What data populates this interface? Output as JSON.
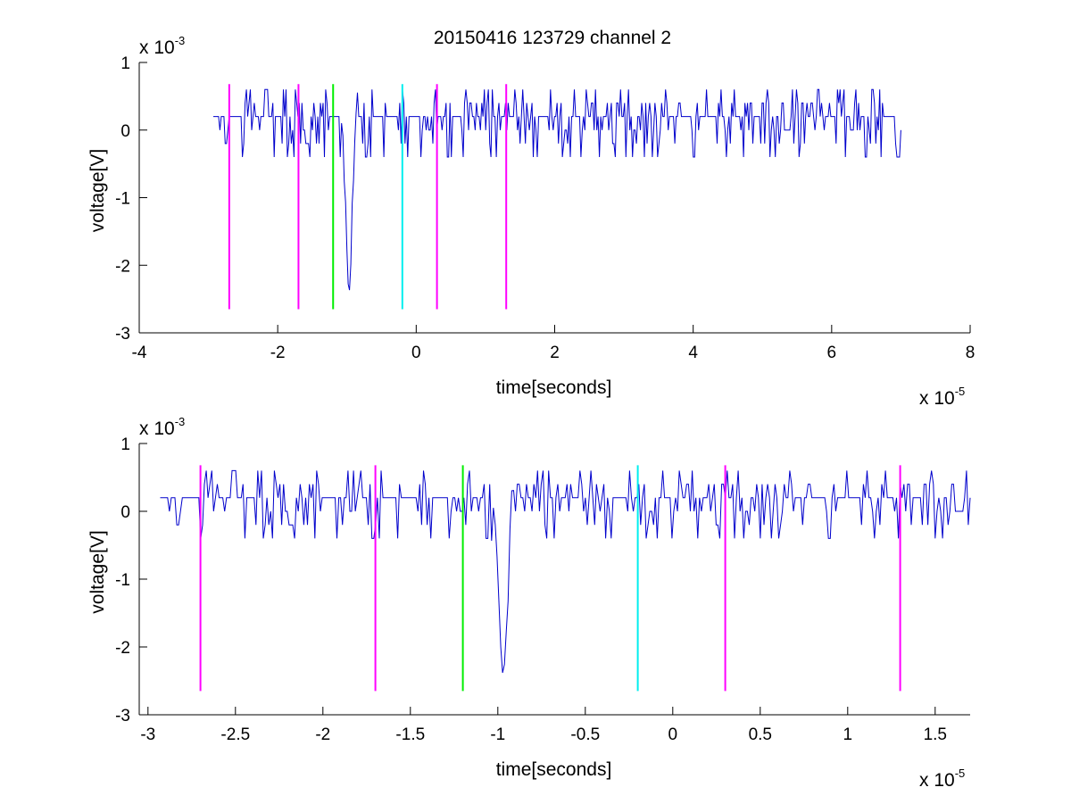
{
  "figure": {
    "title": "20150416 123729 channel 2"
  },
  "chart_data": [
    {
      "type": "line",
      "xlabel": "time[seconds]",
      "ylabel": "voltage[V]",
      "x_multiplier": "x 10",
      "x_exponent": "-5",
      "y_multiplier": "x 10",
      "y_exponent": "-3",
      "xlim": [
        -4,
        8
      ],
      "ylim": [
        -3,
        1
      ],
      "xticks": [
        -4,
        -2,
        0,
        2,
        4,
        6,
        8
      ],
      "xtick_labels": [
        "-4",
        "-2",
        "0",
        "2",
        "4",
        "6",
        "8"
      ],
      "yticks": [
        1,
        0,
        -1,
        -2,
        -3
      ],
      "ytick_labels": [
        "1",
        "0",
        "-1",
        "-2",
        "-3"
      ],
      "grid": false,
      "series": [
        {
          "color": "#0000cc",
          "x_range": [
            -2.93,
            7.0
          ],
          "baseline": 0.05,
          "spike": {
            "x": -0.97,
            "min": -2.4
          }
        }
      ],
      "markers": [
        {
          "x": -2.7,
          "color": "#ff00ff",
          "y_range": [
            -2.65,
            0.68
          ]
        },
        {
          "x": -1.7,
          "color": "#ff00ff",
          "y_range": [
            -2.65,
            0.68
          ]
        },
        {
          "x": -1.2,
          "color": "#00ee00",
          "y_range": [
            -2.65,
            0.68
          ]
        },
        {
          "x": -0.2,
          "color": "#00eeee",
          "y_range": [
            -2.65,
            0.68
          ]
        },
        {
          "x": 0.3,
          "color": "#ff00ff",
          "y_range": [
            -2.65,
            0.68
          ]
        },
        {
          "x": 1.3,
          "color": "#ff00ff",
          "y_range": [
            -2.65,
            0.68
          ]
        }
      ]
    },
    {
      "type": "line",
      "xlabel": "time[seconds]",
      "ylabel": "voltage[V]",
      "x_multiplier": "x 10",
      "x_exponent": "-5",
      "y_multiplier": "x 10",
      "y_exponent": "-3",
      "xlim": [
        -3.05,
        1.7
      ],
      "ylim": [
        -3,
        1
      ],
      "xticks": [
        -3,
        -2.5,
        -2,
        -1.5,
        -1,
        -0.5,
        0,
        0.5,
        1,
        1.5
      ],
      "xtick_labels": [
        "-3",
        "-2.5",
        "-2",
        "-1.5",
        "-1",
        "-0.5",
        "0",
        "0.5",
        "1",
        "1.5"
      ],
      "yticks": [
        1,
        0,
        -1,
        -2,
        -3
      ],
      "ytick_labels": [
        "1",
        "0",
        "-1",
        "-2",
        "-3"
      ],
      "grid": false,
      "series": [
        {
          "color": "#0000cc",
          "x_range": [
            -2.93,
            1.7
          ],
          "baseline": 0.05,
          "spike": {
            "x": -0.97,
            "min": -2.4
          }
        }
      ],
      "markers": [
        {
          "x": -2.7,
          "color": "#ff00ff",
          "y_range": [
            -2.65,
            0.68
          ]
        },
        {
          "x": -1.7,
          "color": "#ff00ff",
          "y_range": [
            -2.65,
            0.68
          ]
        },
        {
          "x": -1.2,
          "color": "#00ee00",
          "y_range": [
            -2.65,
            0.68
          ]
        },
        {
          "x": -0.2,
          "color": "#00eeee",
          "y_range": [
            -2.65,
            0.68
          ]
        },
        {
          "x": 0.3,
          "color": "#ff00ff",
          "y_range": [
            -2.65,
            0.68
          ]
        },
        {
          "x": 1.3,
          "color": "#ff00ff",
          "y_range": [
            -2.65,
            0.68
          ]
        }
      ]
    }
  ]
}
